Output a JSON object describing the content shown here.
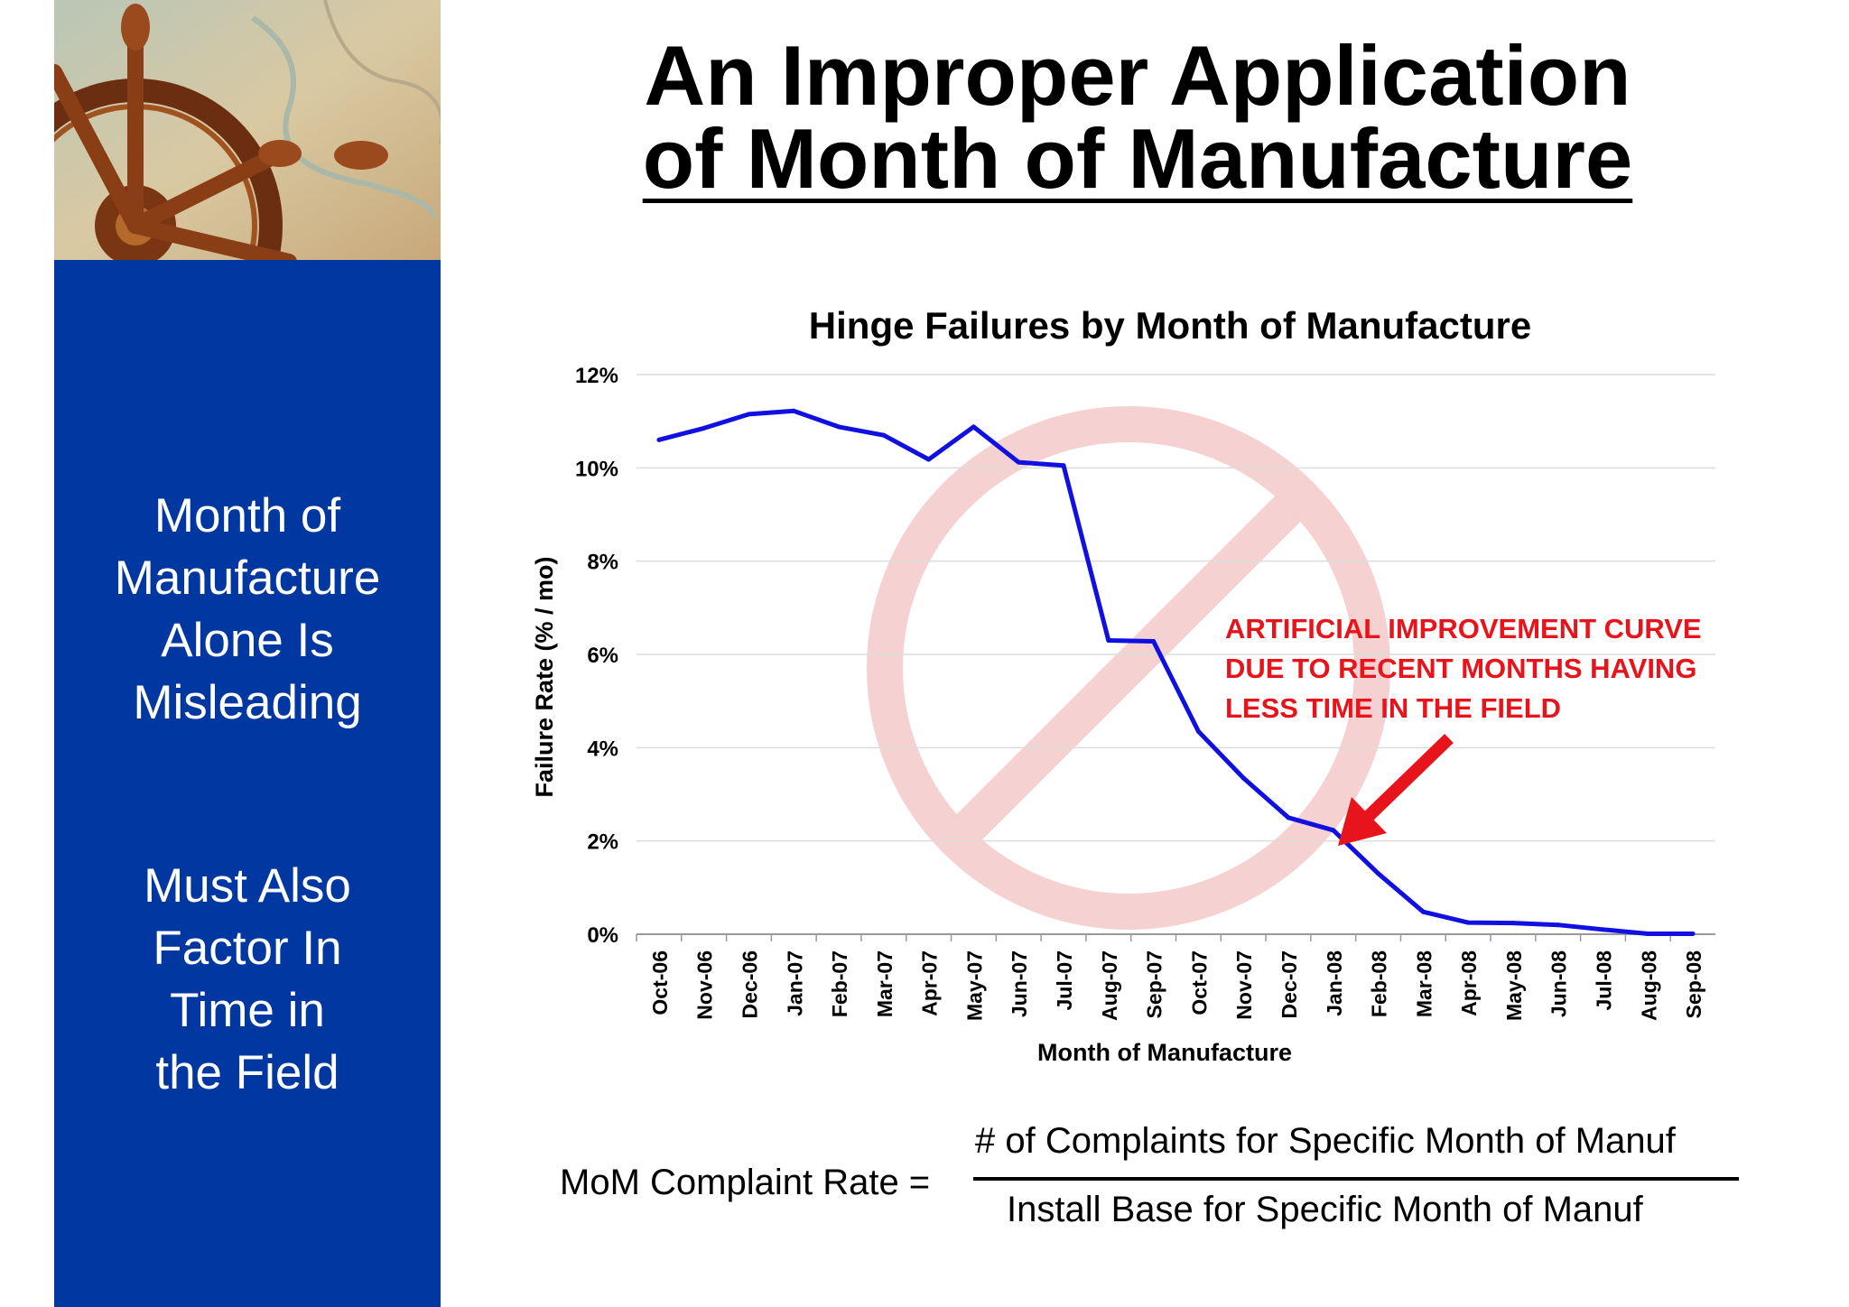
{
  "title": {
    "line1": "An Improper Application",
    "line2": "of Month of Manufacture"
  },
  "sidebar": {
    "block1": [
      "Month of",
      "Manufacture",
      "Alone Is",
      "Misleading"
    ],
    "block2": [
      "Must Also",
      "Factor In",
      "Time in",
      "the Field"
    ]
  },
  "annotation": {
    "lines": [
      "ARTIFICIAL IMPROVEMENT CURVE",
      "DUE TO RECENT MONTHS HAVING",
      "LESS TIME IN THE FIELD"
    ],
    "color": "#e8141b"
  },
  "formula": {
    "left": "MoM Complaint Rate =",
    "numerator": "# of Complaints for Specific Month of Manuf",
    "denominator": "Install Base for Specific Month of Manuf"
  },
  "colors": {
    "sidebar": "#0037a0",
    "line": "#1010e0",
    "watermark": "#f4c9c9"
  },
  "chart_data": {
    "type": "line",
    "title": "Hinge Failures by Month of Manufacture",
    "xlabel": "Month of Manufacture",
    "ylabel": "Failure Rate (% / mo)",
    "ylim": [
      0,
      12
    ],
    "yticks": [
      "0%",
      "2%",
      "4%",
      "6%",
      "8%",
      "10%",
      "12%"
    ],
    "grid": true,
    "categories": [
      "Oct-06",
      "Nov-06",
      "Dec-06",
      "Jan-07",
      "Feb-07",
      "Mar-07",
      "Apr-07",
      "May-07",
      "Jun-07",
      "Jul-07",
      "Aug-07",
      "Sep-07",
      "Oct-07",
      "Nov-07",
      "Dec-07",
      "Jan-08",
      "Feb-08",
      "Mar-08",
      "Apr-08",
      "May-08",
      "Jun-08",
      "Jul-08",
      "Aug-08",
      "Sep-08"
    ],
    "series": [
      {
        "name": "Hinge Failures",
        "values": [
          10.6,
          10.85,
          11.15,
          11.22,
          10.88,
          10.7,
          10.18,
          10.88,
          10.12,
          10.05,
          6.3,
          6.28,
          4.35,
          3.35,
          2.5,
          2.23,
          1.3,
          0.48,
          0.25,
          0.24,
          0.2,
          0.1,
          0.01,
          0.01
        ]
      }
    ]
  }
}
